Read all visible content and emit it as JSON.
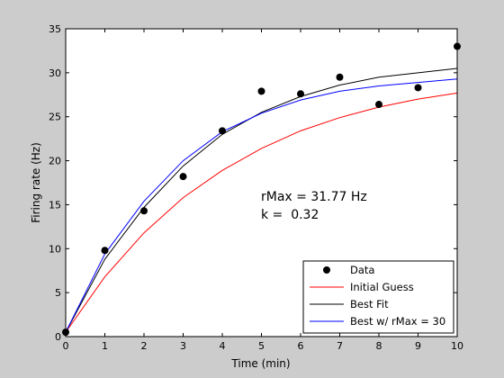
{
  "chart_data": {
    "type": "line",
    "xlabel": "Time (min)",
    "ylabel": "Firing rate (Hz)",
    "xlim": [
      0,
      10
    ],
    "ylim": [
      0,
      35
    ],
    "x_ticks": [
      0,
      1,
      2,
      3,
      4,
      5,
      6,
      7,
      8,
      9,
      10
    ],
    "y_ticks": [
      0,
      5,
      10,
      15,
      20,
      25,
      30,
      35
    ],
    "grid": false,
    "legend_position": "bottom-right",
    "annotations": [
      "rMax = 31.77 Hz",
      "k =  0.32"
    ],
    "series": [
      {
        "name": "Data",
        "kind": "scatter",
        "color": "#000000",
        "x": [
          0,
          1,
          2,
          3,
          4,
          5,
          6,
          7,
          8,
          9,
          10
        ],
        "y": [
          0.5,
          9.8,
          14.3,
          18.2,
          23.4,
          27.9,
          27.6,
          29.5,
          26.4,
          28.3,
          33.0
        ]
      },
      {
        "name": "Initial Guess",
        "kind": "line",
        "color": "#ff0000",
        "x": [
          0,
          1,
          2,
          3,
          4,
          5,
          6,
          7,
          8,
          9,
          10
        ],
        "y": [
          0.5,
          6.8,
          11.8,
          15.8,
          18.9,
          21.4,
          23.4,
          24.9,
          26.1,
          27.0,
          27.7
        ]
      },
      {
        "name": "Best Fit",
        "kind": "line",
        "color": "#000000",
        "x": [
          0,
          1,
          2,
          3,
          4,
          5,
          6,
          7,
          8,
          9,
          10
        ],
        "y": [
          0.5,
          8.8,
          14.7,
          19.4,
          23.0,
          25.5,
          27.3,
          28.6,
          29.5,
          30.0,
          30.5
        ]
      },
      {
        "name": "Best w/ rMax = 30",
        "kind": "line",
        "color": "#0000ff",
        "x": [
          0,
          1,
          2,
          3,
          4,
          5,
          6,
          7,
          8,
          9,
          10
        ],
        "y": [
          0.5,
          9.4,
          15.4,
          20.0,
          23.3,
          25.4,
          26.9,
          27.9,
          28.5,
          28.9,
          29.3
        ]
      }
    ]
  }
}
